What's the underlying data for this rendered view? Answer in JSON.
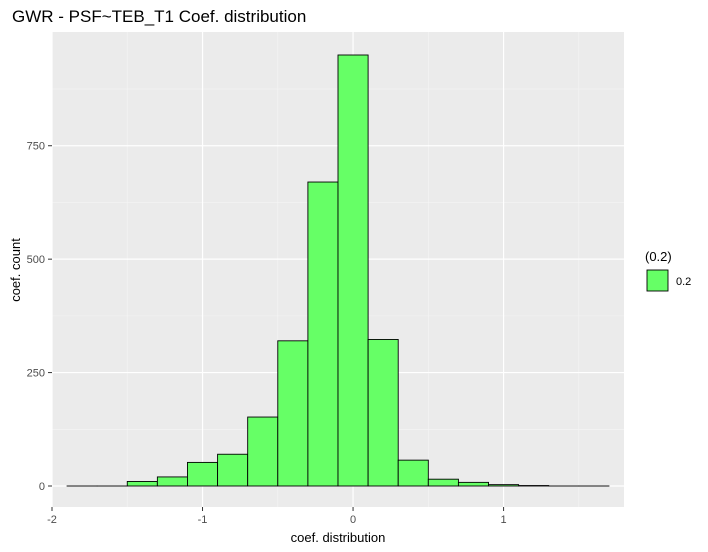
{
  "chart_data": {
    "type": "bar",
    "title": "GWR - PSF~TEB_T1 Coef. distribution",
    "xlabel": "coef. distribution",
    "ylabel": "coef. count",
    "xlim": [
      -2.0,
      1.8
    ],
    "ylim": [
      0,
      950
    ],
    "x_ticks": [
      -2,
      -1,
      0,
      1
    ],
    "x_tick_labels": [
      "-2",
      "-1",
      "0",
      "1"
    ],
    "y_ticks": [
      0,
      250,
      500,
      750
    ],
    "y_tick_labels": [
      "0",
      "250",
      "500",
      "750"
    ],
    "bin_width": 0.2,
    "bins": [
      {
        "x0": -1.9,
        "x1": -1.7,
        "count": 0
      },
      {
        "x0": -1.7,
        "x1": -1.5,
        "count": 0
      },
      {
        "x0": -1.5,
        "x1": -1.3,
        "count": 10
      },
      {
        "x0": -1.3,
        "x1": -1.1,
        "count": 20
      },
      {
        "x0": -1.1,
        "x1": -0.9,
        "count": 52
      },
      {
        "x0": -0.9,
        "x1": -0.7,
        "count": 70
      },
      {
        "x0": -0.7,
        "x1": -0.5,
        "count": 152
      },
      {
        "x0": -0.5,
        "x1": -0.3,
        "count": 320
      },
      {
        "x0": -0.3,
        "x1": -0.1,
        "count": 670
      },
      {
        "x0": -0.1,
        "x1": 0.1,
        "count": 950
      },
      {
        "x0": 0.1,
        "x1": 0.3,
        "count": 323
      },
      {
        "x0": 0.3,
        "x1": 0.5,
        "count": 57
      },
      {
        "x0": 0.5,
        "x1": 0.7,
        "count": 15
      },
      {
        "x0": 0.7,
        "x1": 0.9,
        "count": 8
      },
      {
        "x0": 0.9,
        "x1": 1.1,
        "count": 3
      },
      {
        "x0": 1.1,
        "x1": 1.3,
        "count": 1
      },
      {
        "x0": 1.3,
        "x1": 1.5,
        "count": 0
      },
      {
        "x0": 1.5,
        "x1": 1.7,
        "count": 0
      }
    ],
    "grid": true,
    "legend": {
      "title": "(0.2)",
      "placement": "right",
      "entries": [
        {
          "label": "0.2",
          "color": "#66ff66"
        }
      ]
    },
    "colors": {
      "bar_fill": "#66ff66",
      "bar_stroke": "#000000",
      "panel_background": "#ebebeb",
      "grid_major": "#ffffff",
      "grid_minor": "#f5f5f5"
    }
  }
}
